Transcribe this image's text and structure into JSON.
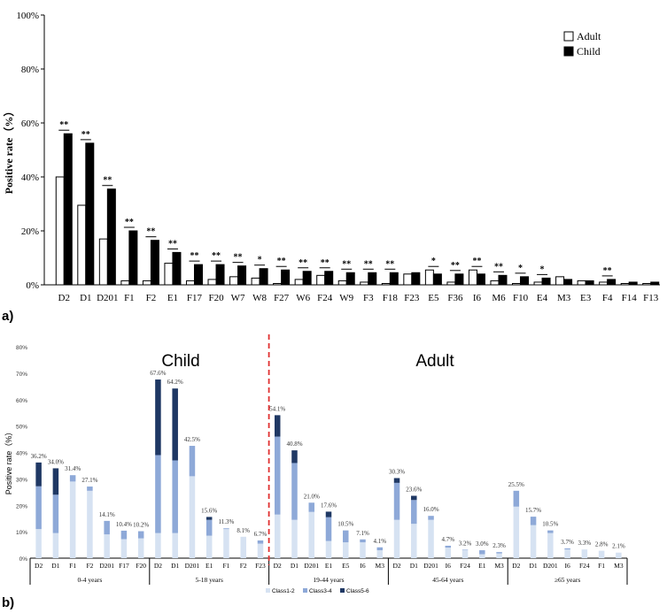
{
  "chart_data": [
    {
      "panel_label": "a)",
      "type": "bar",
      "ylabel": "Positive rate（%）",
      "ylim": [
        0,
        100
      ],
      "yticks": [
        "0%",
        "20%",
        "40%",
        "60%",
        "80%",
        "100%"
      ],
      "legend_position": "top-right",
      "categories": [
        "D2",
        "D1",
        "D201",
        "F1",
        "F2",
        "E1",
        "F17",
        "F20",
        "W7",
        "W8",
        "F27",
        "W6",
        "F24",
        "W9",
        "F3",
        "F18",
        "F23",
        "E5",
        "F36",
        "I6",
        "M6",
        "F10",
        "E4",
        "M3",
        "E3",
        "F4",
        "F14",
        "F13"
      ],
      "series": [
        {
          "name": "Adult",
          "color": "#ffffff",
          "values": [
            40,
            29.5,
            17,
            1.5,
            1.5,
            8,
            1.5,
            2,
            3,
            2.5,
            0.5,
            2,
            3.5,
            1.5,
            1,
            0.5,
            4,
            5.5,
            1,
            5.5,
            1.5,
            0.5,
            1,
            3,
            1.5,
            1,
            0.5,
            0.5
          ]
        },
        {
          "name": "Child",
          "color": "#000000",
          "values": [
            56,
            52.5,
            35.5,
            20,
            16.5,
            12,
            7.5,
            7.5,
            7,
            6,
            5.5,
            5,
            5,
            4.5,
            4.5,
            4.5,
            4.5,
            4,
            4,
            4,
            3.5,
            3,
            2.5,
            2,
            1.5,
            2,
            1,
            1
          ]
        }
      ],
      "significance": [
        "**",
        "**",
        "**",
        "**",
        "**",
        "**",
        "**",
        "**",
        "**",
        "*",
        "**",
        "**",
        "**",
        "**",
        "**",
        "**",
        "",
        "*",
        "**",
        "**",
        "**",
        "*",
        "*",
        "",
        "",
        "**",
        "",
        ""
      ]
    },
    {
      "panel_label": "b)",
      "type": "bar",
      "stacked": true,
      "ylabel": "Positive rate（%）",
      "ylim": [
        0,
        80
      ],
      "yticks": [
        "0%",
        "10%",
        "20%",
        "30%",
        "40%",
        "50%",
        "60%",
        "70%",
        "80%"
      ],
      "region_labels": {
        "left": "Child",
        "right": "Adult"
      },
      "divider_color": "#e03030",
      "legend_position": "bottom",
      "series_names": [
        "Class1-2",
        "Class3-4",
        "Class5-6"
      ],
      "series_colors": [
        "#d6e2f2",
        "#8ea9d8",
        "#1f3864"
      ],
      "groups": [
        {
          "label": "0-4 years",
          "bars": [
            {
              "cat": "D2",
              "values": [
                11,
                16.2,
                9
              ],
              "total_label": "36.2%"
            },
            {
              "cat": "D1",
              "values": [
                9.5,
                14.5,
                10
              ],
              "total_label": "34.0%"
            },
            {
              "cat": "F1",
              "values": [
                29,
                2.4,
                0
              ],
              "total_label": "31.4%"
            },
            {
              "cat": "F2",
              "values": [
                25.5,
                1.6,
                0
              ],
              "total_label": "27.1%"
            },
            {
              "cat": "D201",
              "values": [
                9,
                5.1,
                0
              ],
              "total_label": "14.1%"
            },
            {
              "cat": "F17",
              "values": [
                7.2,
                3.2,
                0
              ],
              "total_label": "10.4%"
            },
            {
              "cat": "F20",
              "values": [
                7.5,
                2.7,
                0
              ],
              "total_label": "10.2%"
            }
          ]
        },
        {
          "label": "5-18 years",
          "bars": [
            {
              "cat": "D2",
              "values": [
                9.5,
                29.5,
                28.6
              ],
              "total_label": "67.6%"
            },
            {
              "cat": "D1",
              "values": [
                9.5,
                27.5,
                27.2
              ],
              "total_label": "64.2%"
            },
            {
              "cat": "D201",
              "values": [
                31,
                11.5,
                0
              ],
              "total_label": "42.5%"
            },
            {
              "cat": "E1",
              "values": [
                8.5,
                6,
                1.1
              ],
              "total_label": "15.6%"
            },
            {
              "cat": "F1",
              "values": [
                11,
                0.3,
                0
              ],
              "total_label": "11.3%"
            },
            {
              "cat": "F2",
              "values": [
                8.1,
                0,
                0
              ],
              "total_label": "8.1%"
            },
            {
              "cat": "F23",
              "values": [
                5.5,
                1.2,
                0
              ],
              "total_label": "6.7%"
            }
          ]
        },
        {
          "label": "19-44 years",
          "bars": [
            {
              "cat": "D2",
              "values": [
                16.5,
                29.5,
                8.1
              ],
              "total_label": "54.1%"
            },
            {
              "cat": "D1",
              "values": [
                14.5,
                21.5,
                4.8
              ],
              "total_label": "40.8%"
            },
            {
              "cat": "D201",
              "values": [
                17.5,
                3.5,
                0
              ],
              "total_label": "21.0%"
            },
            {
              "cat": "E1",
              "values": [
                6.5,
                9,
                2.1
              ],
              "total_label": "17.6%"
            },
            {
              "cat": "E5",
              "values": [
                6,
                4.5,
                0
              ],
              "total_label": "10.5%"
            },
            {
              "cat": "I6",
              "values": [
                6,
                1.1,
                0
              ],
              "total_label": "7.1%"
            },
            {
              "cat": "M3",
              "values": [
                3,
                1.1,
                0
              ],
              "total_label": "4.1%"
            }
          ]
        },
        {
          "label": "45-64 years",
          "bars": [
            {
              "cat": "D2",
              "values": [
                14.5,
                14,
                1.8
              ],
              "total_label": "30.3%"
            },
            {
              "cat": "D1",
              "values": [
                13,
                9,
                1.6
              ],
              "total_label": "23.6%"
            },
            {
              "cat": "D201",
              "values": [
                14.5,
                1.5,
                0
              ],
              "total_label": "16.0%"
            },
            {
              "cat": "I6",
              "values": [
                4,
                0.7,
                0
              ],
              "total_label": "4.7%"
            },
            {
              "cat": "F24",
              "values": [
                3,
                0.2,
                0
              ],
              "total_label": "3.2%"
            },
            {
              "cat": "E1",
              "values": [
                1.5,
                1.5,
                0
              ],
              "total_label": "3.0%"
            },
            {
              "cat": "M3",
              "values": [
                1.8,
                0.5,
                0
              ],
              "total_label": "2.3%"
            }
          ]
        },
        {
          "label": "≥65 years",
          "bars": [
            {
              "cat": "D2",
              "values": [
                19.5,
                6,
                0
              ],
              "total_label": "25.5%"
            },
            {
              "cat": "D1",
              "values": [
                12.5,
                3.2,
                0
              ],
              "total_label": "15.7%"
            },
            {
              "cat": "D201",
              "values": [
                9.5,
                1,
                0
              ],
              "total_label": "10.5%"
            },
            {
              "cat": "I6",
              "values": [
                3.3,
                0.4,
                0
              ],
              "total_label": "3.7%"
            },
            {
              "cat": "F24",
              "values": [
                3.3,
                0,
                0
              ],
              "total_label": "3.3%"
            },
            {
              "cat": "F1",
              "values": [
                2.8,
                0,
                0
              ],
              "total_label": "2.8%"
            },
            {
              "cat": "M3",
              "values": [
                2.1,
                0,
                0
              ],
              "total_label": "2.1%"
            }
          ]
        }
      ]
    }
  ]
}
